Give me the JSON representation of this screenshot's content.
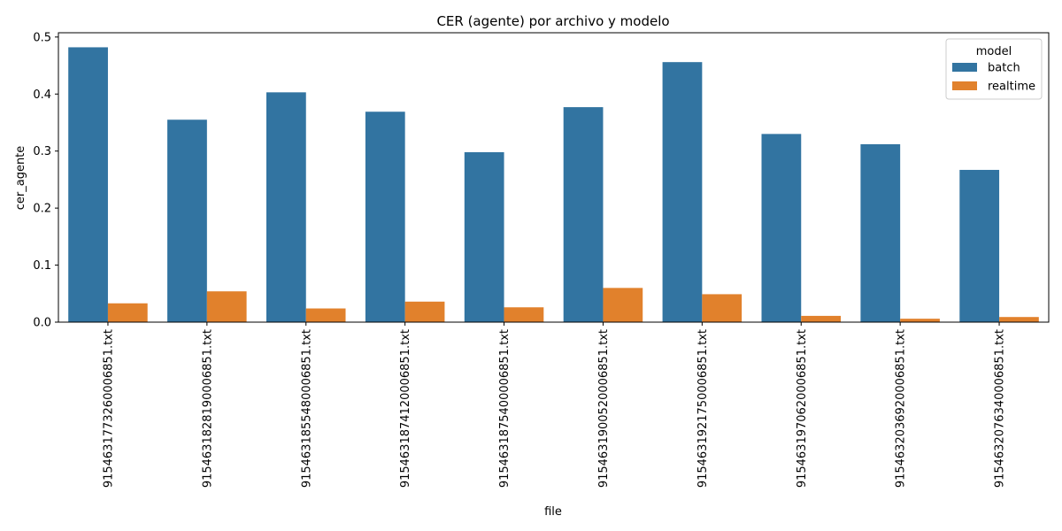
{
  "chart_data": {
    "type": "bar",
    "title": "CER (agente) por archivo y modelo",
    "xlabel": "file",
    "ylabel": "cer_agente",
    "ylim": [
      0,
      0.5
    ],
    "yticks": [
      "0.0",
      "0.1",
      "0.2",
      "0.3",
      "0.4",
      "0.5"
    ],
    "categories": [
      "915463177326000685​1.txt",
      "9154631828190006851.txt",
      "9154631855480006851.txt",
      "9154631874120006851.txt",
      "9154631875400006851.txt",
      "9154631900520006851.txt",
      "9154631921750006851.txt",
      "9154631970620006851.txt",
      "9154632036920006851.txt",
      "9154632076340006851.txt"
    ],
    "series": [
      {
        "name": "batch",
        "color": "#3274a1",
        "values": [
          0.482,
          0.355,
          0.403,
          0.369,
          0.298,
          0.377,
          0.456,
          0.33,
          0.312,
          0.267
        ]
      },
      {
        "name": "realtime",
        "color": "#e1812c",
        "values": [
          0.033,
          0.054,
          0.024,
          0.036,
          0.026,
          0.06,
          0.049,
          0.011,
          0.006,
          0.009
        ]
      }
    ],
    "legend": {
      "title": "model",
      "placement": "top-right"
    },
    "grid": false
  }
}
